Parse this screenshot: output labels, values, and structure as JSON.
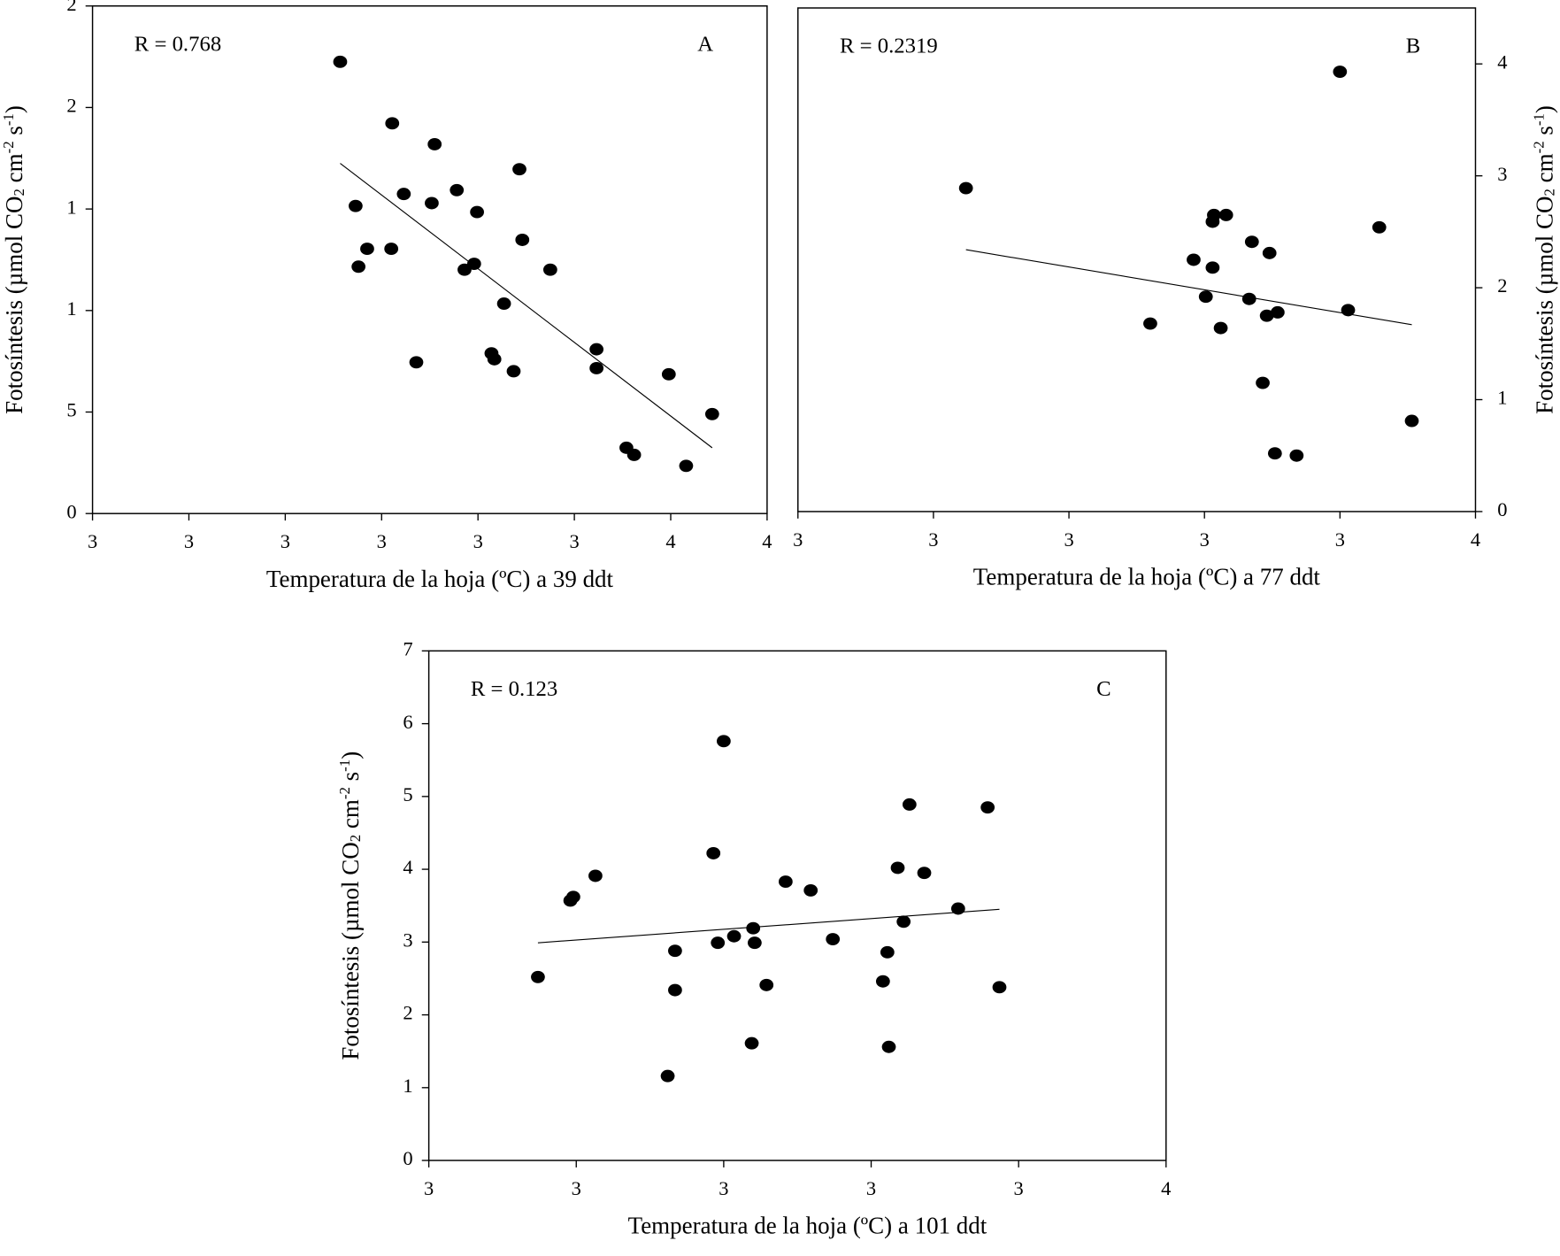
{
  "chart_data": [
    {
      "type": "scatter",
      "annotation": "R = 0.768",
      "panel_label": "A",
      "xlabel": "Temperatura de la hoja (ºC) a 39 ddt",
      "ylabel": [
        "Fotosíntesis (µmol CO",
        "2",
        " cm",
        "-2",
        " s",
        "-1",
        ")"
      ],
      "color": "#000000",
      "x": [
        3.157,
        3.211,
        3.255,
        3.343,
        3.173,
        3.223,
        3.252,
        3.278,
        3.299,
        3.185,
        3.21,
        3.176,
        3.346,
        3.286,
        3.296,
        3.375,
        3.327,
        3.236,
        3.314,
        3.317,
        3.337,
        3.423,
        3.423,
        3.498,
        3.543,
        3.454,
        3.462,
        3.516
      ],
      "y": [
        22.25,
        19.22,
        18.19,
        16.96,
        15.15,
        15.74,
        15.29,
        15.93,
        14.85,
        13.04,
        13.04,
        12.16,
        13.48,
        12.01,
        12.3,
        12.01,
        10.34,
        7.45,
        7.89,
        7.6,
        7.01,
        8.09,
        7.16,
        6.86,
        4.9,
        3.24,
        2.89,
        2.35
      ],
      "trendline": {
        "x": [
          3.157,
          3.543
        ],
        "y": [
          17.25,
          3.24
        ]
      },
      "xlim": [
        2.9,
        3.6
      ],
      "ylim": [
        0,
        25
      ],
      "xticks": [
        {
          "value": 2.9,
          "label": "3"
        },
        {
          "value": 3.0,
          "label": "3"
        },
        {
          "value": 3.1,
          "label": "3"
        },
        {
          "value": 3.2,
          "label": "3"
        },
        {
          "value": 3.3,
          "label": "3"
        },
        {
          "value": 3.4,
          "label": "3"
        },
        {
          "value": 3.5,
          "label": "4"
        },
        {
          "value": 3.6,
          "label": "4"
        }
      ],
      "yticks": [
        0,
        5,
        {
          "value": 10,
          "label": "1"
        },
        {
          "value": 15,
          "label": "1"
        },
        {
          "value": 20,
          "label": "2"
        },
        {
          "value": 25,
          "label": "2"
        }
      ]
    },
    {
      "type": "scatter",
      "annotation": "R = 0.2319",
      "panel_label": "B",
      "xlabel": "Temperatura de la hoja (ºC) a 77 ddt",
      "ylabel": [
        "Fotosíntesis (µmol CO",
        "2",
        " cm",
        "-2",
        " s",
        "-1",
        ")"
      ],
      "color": "#000000",
      "y_axis_side": "right",
      "x": [
        3.124,
        3.307,
        3.316,
        3.306,
        3.292,
        3.306,
        3.335,
        3.348,
        3.301,
        3.333,
        3.26,
        3.312,
        3.346,
        3.354,
        3.406,
        3.429,
        3.4,
        3.343,
        3.453,
        3.352,
        3.368
      ],
      "y": [
        2.89,
        2.65,
        2.65,
        2.59,
        2.25,
        2.18,
        2.41,
        2.31,
        1.92,
        1.9,
        1.68,
        1.64,
        1.75,
        1.78,
        1.8,
        2.54,
        3.93,
        1.15,
        0.81,
        0.52,
        0.5
      ],
      "trendline": {
        "x": [
          3.124,
          3.453
        ],
        "y": [
          2.34,
          1.67
        ]
      },
      "xlim": [
        3.0,
        3.5
      ],
      "ylim": [
        0,
        4.5
      ],
      "xticks": [
        {
          "value": 3.0,
          "label": "3"
        },
        {
          "value": 3.1,
          "label": "3"
        },
        {
          "value": 3.2,
          "label": "3"
        },
        {
          "value": 3.3,
          "label": "3"
        },
        {
          "value": 3.4,
          "label": "3"
        },
        {
          "value": 3.5,
          "label": "4"
        }
      ],
      "yticks": [
        0,
        1,
        2,
        3,
        4
      ]
    },
    {
      "type": "scatter",
      "annotation": "R = 0.123",
      "panel_label": "C",
      "xlabel": "Temperatura de la hoja (ºC) a 101 ddt",
      "ylabel": [
        "Fotosíntesis (µmol CO",
        "2",
        " cm",
        "-2",
        " s",
        "-1",
        ")"
      ],
      "color": "#000000",
      "x": [
        3.074,
        3.096,
        3.098,
        3.113,
        3.162,
        3.167,
        3.167,
        3.193,
        3.196,
        3.2,
        3.207,
        3.22,
        3.221,
        3.219,
        3.229,
        3.242,
        3.259,
        3.274,
        3.308,
        3.311,
        3.312,
        3.318,
        3.322,
        3.326,
        3.336,
        3.359,
        3.379,
        3.387
      ],
      "y": [
        2.52,
        3.57,
        3.62,
        3.91,
        1.16,
        2.88,
        2.34,
        4.22,
        2.99,
        5.76,
        3.08,
        3.19,
        2.99,
        1.61,
        2.41,
        3.83,
        3.71,
        3.04,
        2.46,
        2.86,
        1.56,
        4.02,
        3.28,
        4.89,
        3.95,
        3.46,
        4.85,
        2.38
      ],
      "trendline": {
        "x": [
          3.074,
          3.387
        ],
        "y": [
          2.99,
          3.45
        ]
      },
      "xlim": [
        3.0,
        3.5
      ],
      "ylim": [
        0,
        7
      ],
      "xticks": [
        {
          "value": 3.0,
          "label": "3"
        },
        {
          "value": 3.1,
          "label": "3"
        },
        {
          "value": 3.2,
          "label": "3"
        },
        {
          "value": 3.3,
          "label": "3"
        },
        {
          "value": 3.4,
          "label": "3"
        },
        {
          "value": 3.5,
          "label": "4"
        }
      ],
      "yticks": [
        0,
        1,
        2,
        3,
        4,
        5,
        6,
        7
      ]
    }
  ]
}
